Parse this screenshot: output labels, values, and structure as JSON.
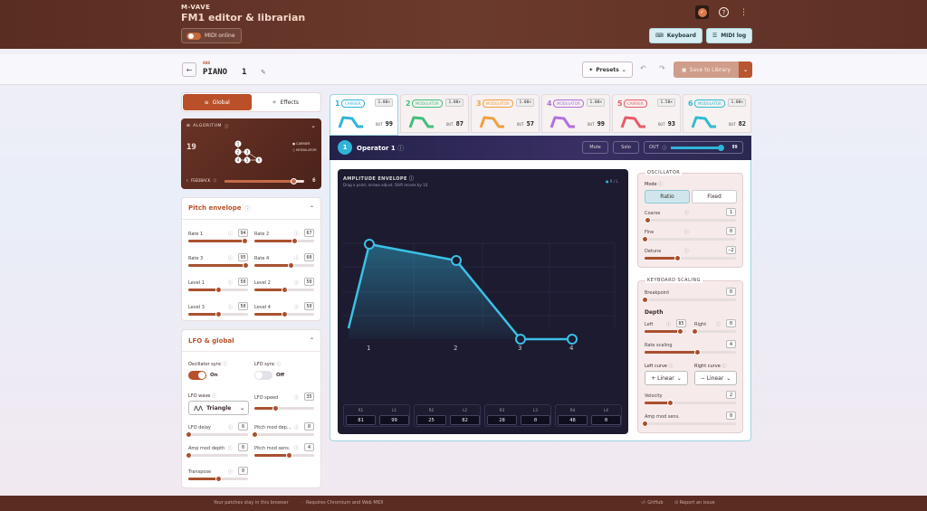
{
  "header": {
    "brand": "M-VAVE",
    "title": "FM1 editor & librarian",
    "midi_status": "MIDI online",
    "keyboard_btn": "Keyboard",
    "midilog_btn": "MIDI log"
  },
  "patch": {
    "bank": "A08",
    "name": "PIANO",
    "number": "1",
    "presets_btn": "Presets",
    "save_btn": "Save to Library"
  },
  "left_tabs": {
    "global": "Global",
    "effects": "Effects"
  },
  "algorithm": {
    "label": "ALGORITHM",
    "number": "19",
    "legend_carrier": "CARRIER",
    "legend_modulator": "MODULATOR",
    "feedback_label": "FEEDBACK",
    "feedback_value": "6",
    "feedback_fraction": 0.86,
    "ops": [
      "1",
      "2",
      "3",
      "4",
      "5",
      "6"
    ]
  },
  "pitch_envelope": {
    "title": "Pitch envelope",
    "params": [
      {
        "label": "Rate 1",
        "value": "94",
        "fraction": 0.94
      },
      {
        "label": "Rate 2",
        "value": "67",
        "fraction": 0.67
      },
      {
        "label": "Rate 3",
        "value": "95",
        "fraction": 0.95
      },
      {
        "label": "Rate 4",
        "value": "60",
        "fraction": 0.6
      },
      {
        "label": "Level 1",
        "value": "50",
        "fraction": 0.5
      },
      {
        "label": "Level 2",
        "value": "50",
        "fraction": 0.5
      },
      {
        "label": "Level 3",
        "value": "50",
        "fraction": 0.5
      },
      {
        "label": "Level 4",
        "value": "50",
        "fraction": 0.5
      }
    ]
  },
  "lfo": {
    "title": "LFO & global",
    "osc_sync_label": "Oscillator sync",
    "osc_sync_state": "On",
    "lfo_sync_label": "LFO sync",
    "lfo_sync_state": "Off",
    "wave_label": "LFO wave",
    "wave_value": "Triangle",
    "speed_label": "LFO speed",
    "speed_value": "35",
    "speed_fraction": 0.35,
    "params": [
      {
        "label": "LFO delay",
        "value": "0",
        "fraction": 0
      },
      {
        "label": "Pitch mod dep...",
        "value": "0",
        "fraction": 0
      },
      {
        "label": "Amp mod depth",
        "value": "0",
        "fraction": 0
      },
      {
        "label": "Pitch mod sens.",
        "value": "4",
        "fraction": 0.57
      },
      {
        "label": "Transpose",
        "value": "0",
        "fraction": 0.5
      }
    ]
  },
  "operators": [
    {
      "num": "1",
      "role": "CARRIER",
      "ratio": "1.00×",
      "out": "99",
      "color": "#2fb4d8"
    },
    {
      "num": "2",
      "role": "MODULATOR",
      "ratio": "1.00×",
      "out": "87",
      "color": "#3fc07a"
    },
    {
      "num": "3",
      "role": "MODULATOR",
      "ratio": "1.00×",
      "out": "57",
      "color": "#f0a040"
    },
    {
      "num": "4",
      "role": "MODULATOR",
      "ratio": "1.00×",
      "out": "99",
      "color": "#b070e0"
    },
    {
      "num": "5",
      "role": "CARRIER",
      "ratio": "1.50×",
      "out": "93",
      "color": "#e85a6a"
    },
    {
      "num": "6",
      "role": "MODULATOR",
      "ratio": "1.00×",
      "out": "82",
      "color": "#30bcd0"
    }
  ],
  "operator": {
    "num": "1",
    "title": "Operator 1",
    "mute": "Mute",
    "solo": "Solo",
    "out_label": "OUT",
    "out_value": "99",
    "out_fraction": 0.99
  },
  "envelope": {
    "title": "AMPLITUDE ENVELOPE",
    "hint": "Drag a point; arrows adjust. Shift moves by 10.",
    "legend": "R / L",
    "point_labels": [
      "1",
      "2",
      "3",
      "4"
    ],
    "fields": [
      {
        "r": "R1",
        "l": "L1",
        "rv": "81",
        "lv": "99"
      },
      {
        "r": "R2",
        "l": "L2",
        "rv": "25",
        "lv": "82"
      },
      {
        "r": "R3",
        "l": "L3",
        "rv": "28",
        "lv": "0"
      },
      {
        "r": "R4",
        "l": "L4",
        "rv": "48",
        "lv": "0"
      }
    ]
  },
  "oscillator": {
    "title": "OSCILLATOR",
    "mode_label": "Mode",
    "ratio": "Ratio",
    "fixed": "Fixed",
    "params": [
      {
        "label": "Coarse",
        "value": "1",
        "fraction": 0.03
      },
      {
        "label": "Fine",
        "value": "0",
        "fraction": 0
      },
      {
        "label": "Detune",
        "value": "−2",
        "fraction": 0.36
      }
    ]
  },
  "keyboard_scaling": {
    "title": "KEYBOARD SCALING",
    "breakpoint_label": "Breakpoint",
    "breakpoint_value": "0",
    "depth": "Depth",
    "left_label": "Left",
    "left_value": "85",
    "left_fraction": 0.85,
    "right_label": "Right",
    "right_value": "0",
    "right_fraction": 0,
    "rate_label": "Rate scaling",
    "rate_value": "4",
    "rate_fraction": 0.57,
    "left_curve_label": "Left curve",
    "left_curve": "+ Linear",
    "right_curve_label": "Right curve",
    "right_curve": "− Linear",
    "velocity_label": "Velocity",
    "velocity_value": "2",
    "velocity_fraction": 0.28,
    "ams_label": "Amp mod sens.",
    "ams_value": "0",
    "ams_fraction": 0
  },
  "footer": {
    "left": "Your patches stay in this browser",
    "mid": "Requires Chromium and Web MIDI",
    "github": "GitHub",
    "issue": "Report an issue"
  },
  "colors": {
    "accent": "#b9502a",
    "header": "#5a2d22",
    "teal": "#2fb4d8"
  }
}
